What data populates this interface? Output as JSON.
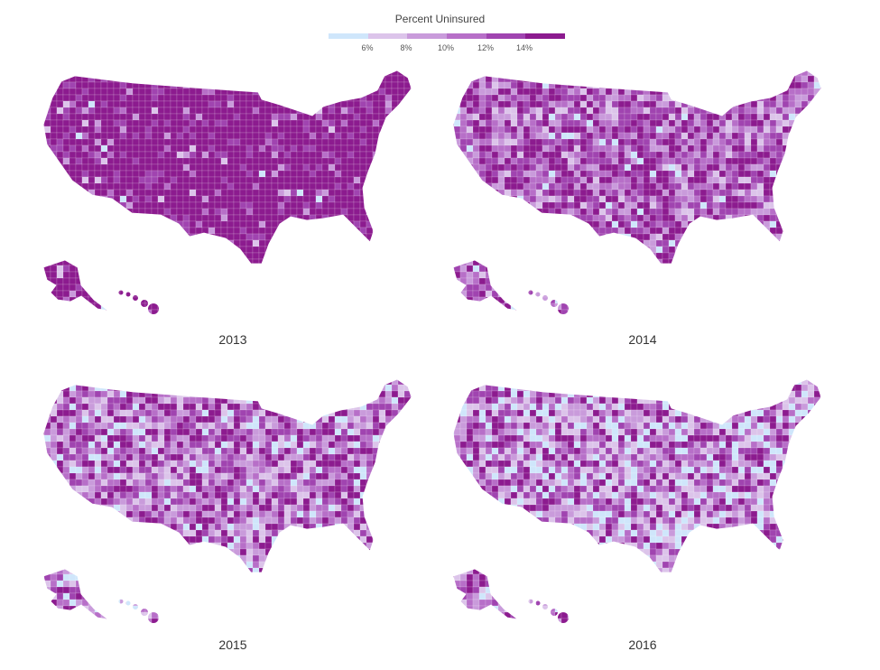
{
  "legend": {
    "title": "Percent Uninsured",
    "ticks": [
      "6%",
      "8%",
      "10%",
      "12%",
      "14%"
    ],
    "colors": [
      "#cfe6fb",
      "#dcc4ea",
      "#c99bdb",
      "#b76fc8",
      "#a044b0",
      "#8c1b8f"
    ]
  },
  "panels": [
    {
      "year": "2013",
      "mix": [
        0.01,
        0.02,
        0.03,
        0.05,
        0.12,
        0.77
      ]
    },
    {
      "year": "2014",
      "mix": [
        0.03,
        0.08,
        0.15,
        0.2,
        0.24,
        0.3
      ]
    },
    {
      "year": "2015",
      "mix": [
        0.08,
        0.14,
        0.18,
        0.18,
        0.18,
        0.24
      ]
    },
    {
      "year": "2016",
      "mix": [
        0.16,
        0.18,
        0.17,
        0.16,
        0.15,
        0.18
      ]
    }
  ]
}
